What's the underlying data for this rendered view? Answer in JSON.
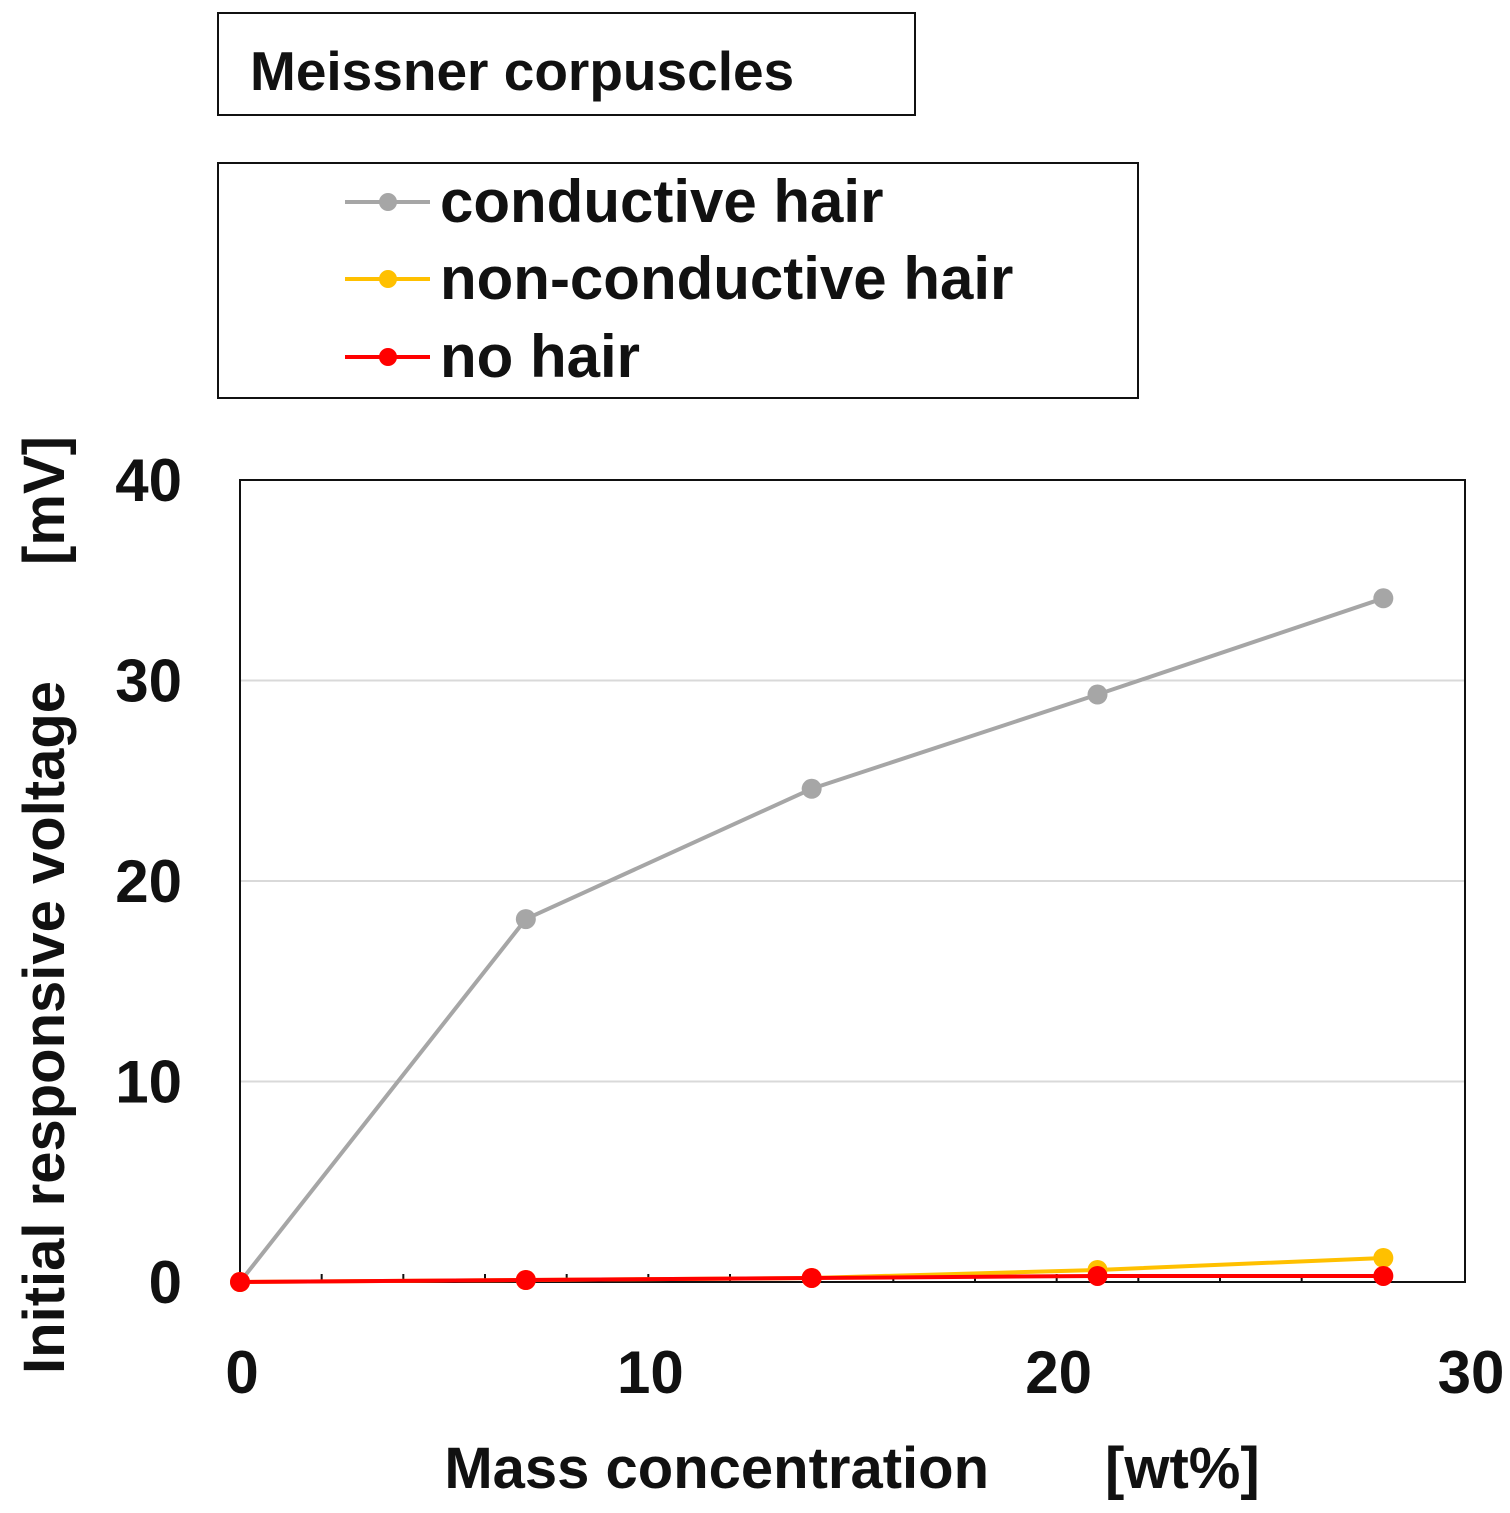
{
  "chart_data": {
    "type": "line",
    "title": "Meissner corpuscles",
    "xlabel": "Mass concentration  [wt%]",
    "ylabel": "Initial responsive voltage  [mV]",
    "xlim": [
      0,
      30
    ],
    "ylim": [
      0,
      40
    ],
    "xticks": [
      "0",
      "10",
      "20",
      "30"
    ],
    "yticks": [
      "0",
      "10",
      "20",
      "30",
      "40"
    ],
    "x": [
      0,
      7,
      14,
      21,
      28
    ],
    "grid": true,
    "legend_position": "top-left, outside plot",
    "series": [
      {
        "name": "conductive hair",
        "color": "#a6a6a6",
        "values": [
          0,
          18.1,
          24.6,
          29.3,
          34.1
        ]
      },
      {
        "name": "non-conductive hair",
        "color": "#ffc000",
        "values": [
          0,
          0.1,
          0.2,
          0.6,
          1.2
        ]
      },
      {
        "name": "no hair",
        "color": "#ff0000",
        "values": [
          0,
          0.1,
          0.2,
          0.3,
          0.3
        ]
      }
    ]
  }
}
